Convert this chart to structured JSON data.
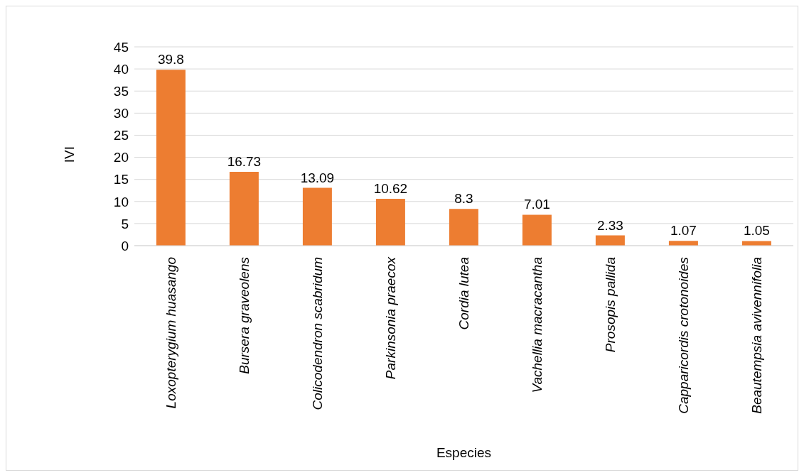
{
  "chart_data": {
    "type": "bar",
    "xlabel": "Especies",
    "ylabel": "IVI",
    "categories": [
      "Loxopterygium huasango",
      "Bursera graveolens",
      "Colicodendron scabridum",
      "Parkinsonia praecox",
      "Cordia lutea",
      "Vachellia macracantha",
      "Prosopis pallida",
      "Capparicordis crotonoides",
      "Beautempsia avivennifolia"
    ],
    "values": [
      39.8,
      16.73,
      13.09,
      10.62,
      8.3,
      7.01,
      2.33,
      1.07,
      1.05
    ],
    "color": "#ed7d31",
    "ylim": [
      0,
      45
    ],
    "yticks": [
      0,
      5,
      10,
      15,
      20,
      25,
      30,
      35,
      40,
      45
    ],
    "grid": "y",
    "data_labels": true,
    "legend": false
  }
}
